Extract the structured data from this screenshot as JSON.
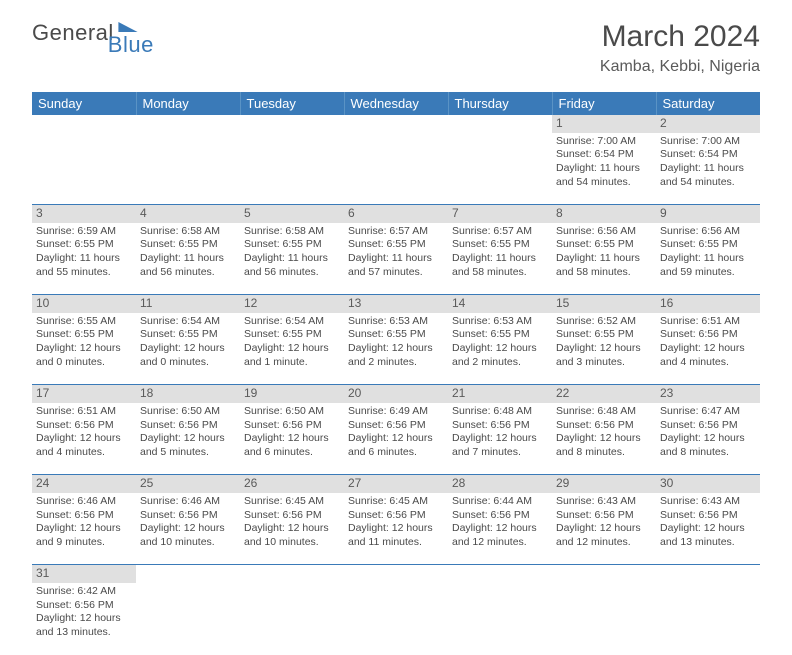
{
  "logo": {
    "text1": "General",
    "text2": "Blue"
  },
  "title": "March 2024",
  "location": "Kamba, Kebbi, Nigeria",
  "weekdays": [
    "Sunday",
    "Monday",
    "Tuesday",
    "Wednesday",
    "Thursday",
    "Friday",
    "Saturday"
  ],
  "colors": {
    "header_bg": "#3a7ab8",
    "header_text": "#ffffff",
    "daynum_bg": "#e0e0e0",
    "row_divider": "#3a7ab8",
    "text": "#4a4a4a"
  },
  "weeks": [
    [
      null,
      null,
      null,
      null,
      null,
      {
        "n": "1",
        "sr": "Sunrise: 7:00 AM",
        "ss": "Sunset: 6:54 PM",
        "d1": "Daylight: 11 hours",
        "d2": "and 54 minutes."
      },
      {
        "n": "2",
        "sr": "Sunrise: 7:00 AM",
        "ss": "Sunset: 6:54 PM",
        "d1": "Daylight: 11 hours",
        "d2": "and 54 minutes."
      }
    ],
    [
      {
        "n": "3",
        "sr": "Sunrise: 6:59 AM",
        "ss": "Sunset: 6:55 PM",
        "d1": "Daylight: 11 hours",
        "d2": "and 55 minutes."
      },
      {
        "n": "4",
        "sr": "Sunrise: 6:58 AM",
        "ss": "Sunset: 6:55 PM",
        "d1": "Daylight: 11 hours",
        "d2": "and 56 minutes."
      },
      {
        "n": "5",
        "sr": "Sunrise: 6:58 AM",
        "ss": "Sunset: 6:55 PM",
        "d1": "Daylight: 11 hours",
        "d2": "and 56 minutes."
      },
      {
        "n": "6",
        "sr": "Sunrise: 6:57 AM",
        "ss": "Sunset: 6:55 PM",
        "d1": "Daylight: 11 hours",
        "d2": "and 57 minutes."
      },
      {
        "n": "7",
        "sr": "Sunrise: 6:57 AM",
        "ss": "Sunset: 6:55 PM",
        "d1": "Daylight: 11 hours",
        "d2": "and 58 minutes."
      },
      {
        "n": "8",
        "sr": "Sunrise: 6:56 AM",
        "ss": "Sunset: 6:55 PM",
        "d1": "Daylight: 11 hours",
        "d2": "and 58 minutes."
      },
      {
        "n": "9",
        "sr": "Sunrise: 6:56 AM",
        "ss": "Sunset: 6:55 PM",
        "d1": "Daylight: 11 hours",
        "d2": "and 59 minutes."
      }
    ],
    [
      {
        "n": "10",
        "sr": "Sunrise: 6:55 AM",
        "ss": "Sunset: 6:55 PM",
        "d1": "Daylight: 12 hours",
        "d2": "and 0 minutes."
      },
      {
        "n": "11",
        "sr": "Sunrise: 6:54 AM",
        "ss": "Sunset: 6:55 PM",
        "d1": "Daylight: 12 hours",
        "d2": "and 0 minutes."
      },
      {
        "n": "12",
        "sr": "Sunrise: 6:54 AM",
        "ss": "Sunset: 6:55 PM",
        "d1": "Daylight: 12 hours",
        "d2": "and 1 minute."
      },
      {
        "n": "13",
        "sr": "Sunrise: 6:53 AM",
        "ss": "Sunset: 6:55 PM",
        "d1": "Daylight: 12 hours",
        "d2": "and 2 minutes."
      },
      {
        "n": "14",
        "sr": "Sunrise: 6:53 AM",
        "ss": "Sunset: 6:55 PM",
        "d1": "Daylight: 12 hours",
        "d2": "and 2 minutes."
      },
      {
        "n": "15",
        "sr": "Sunrise: 6:52 AM",
        "ss": "Sunset: 6:55 PM",
        "d1": "Daylight: 12 hours",
        "d2": "and 3 minutes."
      },
      {
        "n": "16",
        "sr": "Sunrise: 6:51 AM",
        "ss": "Sunset: 6:56 PM",
        "d1": "Daylight: 12 hours",
        "d2": "and 4 minutes."
      }
    ],
    [
      {
        "n": "17",
        "sr": "Sunrise: 6:51 AM",
        "ss": "Sunset: 6:56 PM",
        "d1": "Daylight: 12 hours",
        "d2": "and 4 minutes."
      },
      {
        "n": "18",
        "sr": "Sunrise: 6:50 AM",
        "ss": "Sunset: 6:56 PM",
        "d1": "Daylight: 12 hours",
        "d2": "and 5 minutes."
      },
      {
        "n": "19",
        "sr": "Sunrise: 6:50 AM",
        "ss": "Sunset: 6:56 PM",
        "d1": "Daylight: 12 hours",
        "d2": "and 6 minutes."
      },
      {
        "n": "20",
        "sr": "Sunrise: 6:49 AM",
        "ss": "Sunset: 6:56 PM",
        "d1": "Daylight: 12 hours",
        "d2": "and 6 minutes."
      },
      {
        "n": "21",
        "sr": "Sunrise: 6:48 AM",
        "ss": "Sunset: 6:56 PM",
        "d1": "Daylight: 12 hours",
        "d2": "and 7 minutes."
      },
      {
        "n": "22",
        "sr": "Sunrise: 6:48 AM",
        "ss": "Sunset: 6:56 PM",
        "d1": "Daylight: 12 hours",
        "d2": "and 8 minutes."
      },
      {
        "n": "23",
        "sr": "Sunrise: 6:47 AM",
        "ss": "Sunset: 6:56 PM",
        "d1": "Daylight: 12 hours",
        "d2": "and 8 minutes."
      }
    ],
    [
      {
        "n": "24",
        "sr": "Sunrise: 6:46 AM",
        "ss": "Sunset: 6:56 PM",
        "d1": "Daylight: 12 hours",
        "d2": "and 9 minutes."
      },
      {
        "n": "25",
        "sr": "Sunrise: 6:46 AM",
        "ss": "Sunset: 6:56 PM",
        "d1": "Daylight: 12 hours",
        "d2": "and 10 minutes."
      },
      {
        "n": "26",
        "sr": "Sunrise: 6:45 AM",
        "ss": "Sunset: 6:56 PM",
        "d1": "Daylight: 12 hours",
        "d2": "and 10 minutes."
      },
      {
        "n": "27",
        "sr": "Sunrise: 6:45 AM",
        "ss": "Sunset: 6:56 PM",
        "d1": "Daylight: 12 hours",
        "d2": "and 11 minutes."
      },
      {
        "n": "28",
        "sr": "Sunrise: 6:44 AM",
        "ss": "Sunset: 6:56 PM",
        "d1": "Daylight: 12 hours",
        "d2": "and 12 minutes."
      },
      {
        "n": "29",
        "sr": "Sunrise: 6:43 AM",
        "ss": "Sunset: 6:56 PM",
        "d1": "Daylight: 12 hours",
        "d2": "and 12 minutes."
      },
      {
        "n": "30",
        "sr": "Sunrise: 6:43 AM",
        "ss": "Sunset: 6:56 PM",
        "d1": "Daylight: 12 hours",
        "d2": "and 13 minutes."
      }
    ],
    [
      {
        "n": "31",
        "sr": "Sunrise: 6:42 AM",
        "ss": "Sunset: 6:56 PM",
        "d1": "Daylight: 12 hours",
        "d2": "and 13 minutes."
      },
      null,
      null,
      null,
      null,
      null,
      null
    ]
  ]
}
